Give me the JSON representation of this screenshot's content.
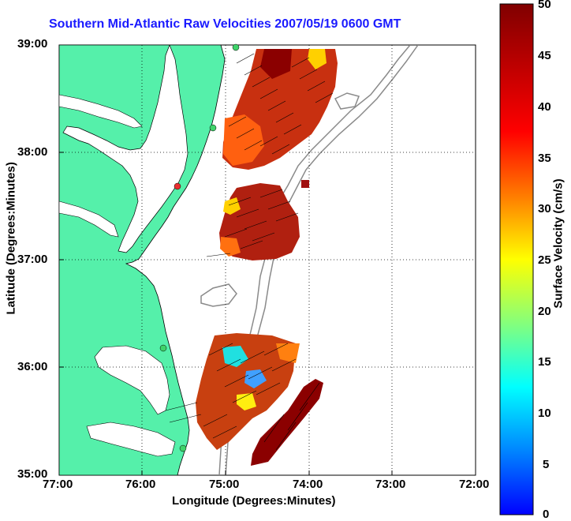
{
  "title": "Southern Mid-Atlantic Raw Velocities 2007/05/19 0600 GMT",
  "xlabel": "Longitude (Degrees:Minutes)",
  "ylabel": "Latitude (Degrees:Minutes)",
  "colorbar_label": "Surface Velocity (cm/s)",
  "x_ticks": [
    "77:00",
    "76:00",
    "75:00",
    "74:00",
    "73:00",
    "72:00"
  ],
  "y_ticks": [
    "39:00",
    "38:00",
    "37:00",
    "36:00",
    "35:00"
  ],
  "colorbar_ticks": [
    "50",
    "45",
    "40",
    "35",
    "30",
    "25",
    "20",
    "15",
    "10",
    "5",
    "0"
  ],
  "colors": {
    "land": "#55f0aa",
    "title": "#1a1aff",
    "gridline": "#000000",
    "bathymetry": "#8a8a8a"
  },
  "chart_data": {
    "type": "heatmap",
    "description_axes": {
      "xlim": [
        -77,
        -72
      ],
      "ylim": [
        35,
        39
      ]
    },
    "colorbar_range": [
      0,
      50
    ],
    "grid": true
  }
}
